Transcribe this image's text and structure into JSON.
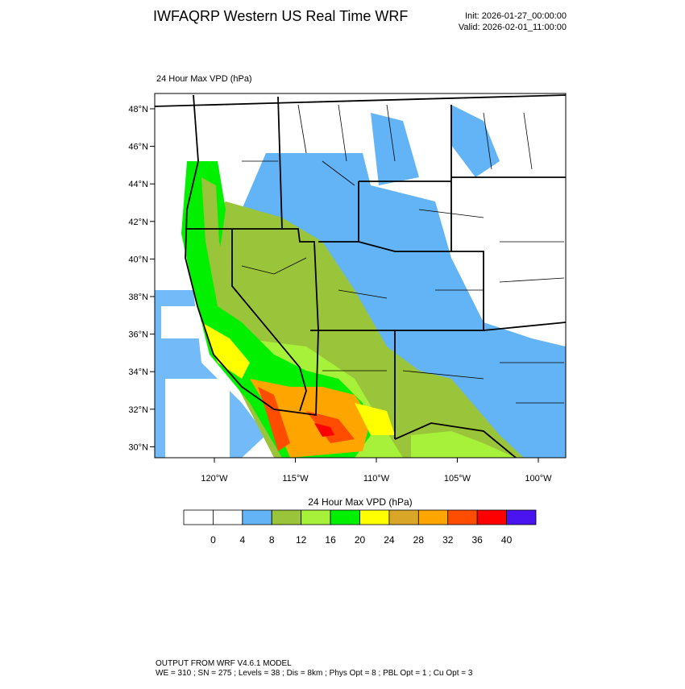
{
  "header": {
    "title": "IWFAQRP Western US Real Time WRF",
    "init": "Init: 2026-01-27_00:00:00",
    "valid": "Valid: 2026-02-01_11:00:00"
  },
  "map": {
    "label": "24 Hour Max VPD   (hPa)",
    "lat_labels": [
      "48°N",
      "46°N",
      "44°N",
      "42°N",
      "40°N",
      "38°N",
      "36°N",
      "34°N",
      "32°N",
      "30°N"
    ],
    "lon_labels": [
      "120°W",
      "115°W",
      "110°W",
      "105°W",
      "100°W"
    ]
  },
  "colorbar": {
    "title": "24 Hour Max VPD  (hPa)",
    "labels": [
      0,
      4,
      8,
      12,
      16,
      20,
      24,
      28,
      32,
      36,
      40
    ],
    "colors": [
      "#ffffff",
      "#ffffff",
      "#63b3f7",
      "#9ac43a",
      "#a8f13a",
      "#00f000",
      "#ffff00",
      "#d9a628",
      "#ffa500",
      "#ff4d00",
      "#ff0000",
      "#4a14f0"
    ]
  },
  "footer": {
    "line1": "OUTPUT FROM WRF V4.6.1 MODEL",
    "line2": "WE = 310 ; SN = 275 ; Levels = 38 ; Dis = 8km ; Phys Opt = 8 ; PBL Opt = 1 ; Cu Opt = 3"
  }
}
